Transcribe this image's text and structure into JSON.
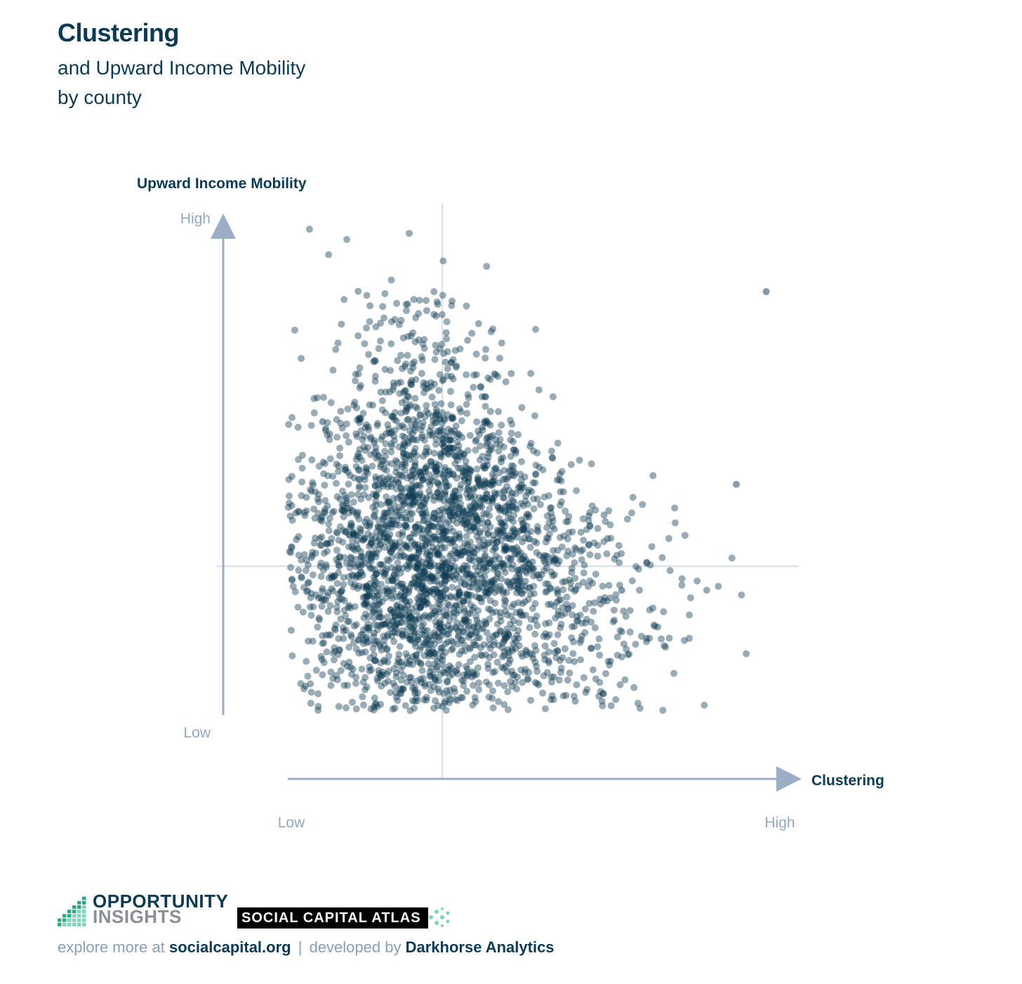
{
  "title": "Clustering",
  "subtitle_lines": [
    "and Upward Income Mobility",
    "by county"
  ],
  "colors": {
    "dot": "#0b3a52",
    "axis": "#9aaec6",
    "quadrant_line": "#dce3ec",
    "tick_label": "#93a8c0",
    "axis_title": "#0b3a52"
  },
  "chart_data": {
    "type": "scatter",
    "xlabel": "Clustering",
    "ylabel": "Upward Income Mobility",
    "x_tick_labels": [
      "Low",
      "High"
    ],
    "y_tick_labels": [
      "Low",
      "High"
    ],
    "xlim": [
      0,
      1
    ],
    "ylim": [
      0,
      1
    ],
    "quadrant_lines": {
      "x": 0.31,
      "y": 0.3
    },
    "grid": false,
    "legend": "none",
    "point_count": 3000,
    "distribution_notes": "dense cloud centered near low clustering / mid-low mobility, tapering toward high clustering",
    "highlighted_outliers": [
      {
        "x": 0.96,
        "y": 0.87
      },
      {
        "x": 0.07,
        "y": 0.6
      },
      {
        "x": 0.9,
        "y": 0.47
      },
      {
        "x": 0.67,
        "y": 0.25
      }
    ]
  },
  "footer": {
    "oi_line1": "OPPORTUNITY",
    "oi_line2": "INSIGHTS",
    "sca_label": "SOCIAL CAPITAL ATLAS",
    "explore_prefix": "explore more at",
    "site": "socialcapital.org",
    "separator": "|",
    "developed_prefix": "developed by",
    "developer": "Darkhorse Analytics"
  }
}
